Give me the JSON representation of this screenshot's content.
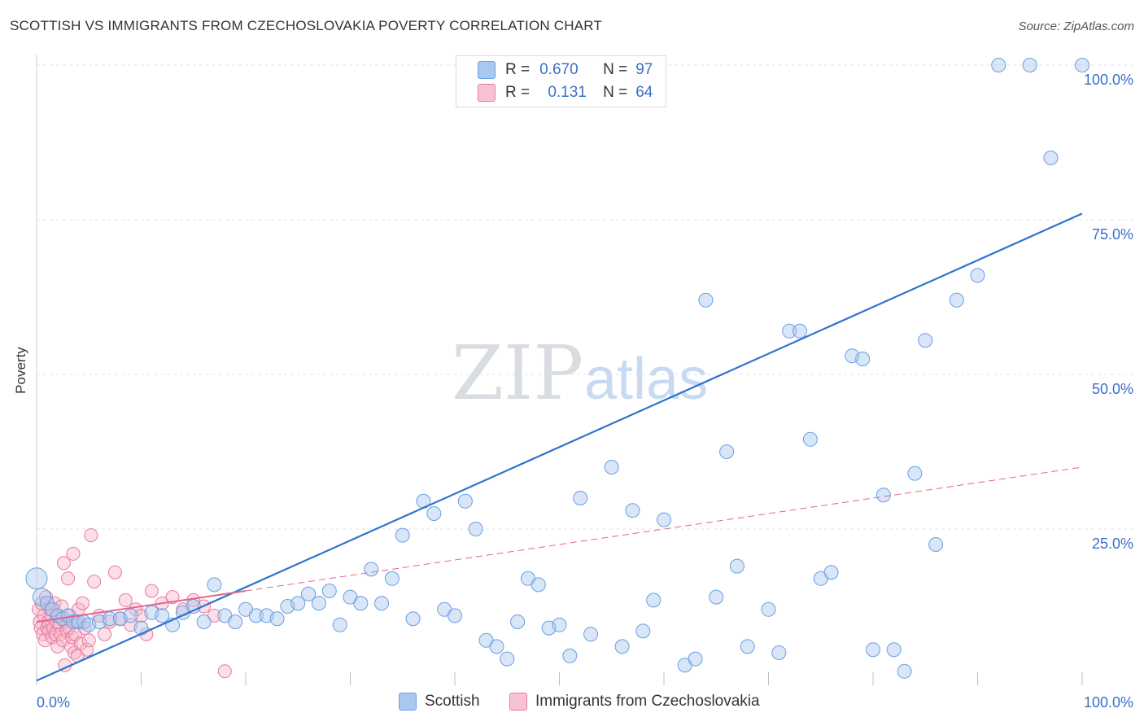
{
  "header": {
    "title": "SCOTTISH VS IMMIGRANTS FROM CZECHOSLOVAKIA POVERTY CORRELATION CHART",
    "source": "Source: ZipAtlas.com"
  },
  "legend": {
    "rows": [
      {
        "r_label": "R =",
        "r_value": "0.670",
        "n_label": "N =",
        "n_value": "97"
      },
      {
        "r_label": "R =",
        "r_value": "0.131",
        "n_label": "N =",
        "n_value": "64"
      }
    ],
    "bottom": [
      "Scottish",
      "Immigrants from Czechoslovakia"
    ]
  },
  "watermark": {
    "zip": "ZIP",
    "atlas": "atlas"
  },
  "colors": {
    "blue_fill": "#a9c8f0",
    "blue_stroke": "#6a9fe0",
    "blue_line": "#2f74d0",
    "pink_fill": "#f7b6ca",
    "pink_stroke": "#e97a9e",
    "pink_line": "#e0668f",
    "grid": "#dde3ea",
    "axis_text": "#3a70c7"
  },
  "chart_data": {
    "type": "scatter",
    "title": "SCOTTISH VS IMMIGRANTS FROM CZECHOSLOVAKIA POVERTY CORRELATION CHART",
    "xlabel": "",
    "ylabel": "Poverty",
    "xlim": [
      0,
      100
    ],
    "ylim": [
      0,
      100
    ],
    "x_tick_labels": [
      "0.0%",
      "100.0%"
    ],
    "y_tick_labels": [
      "25.0%",
      "50.0%",
      "75.0%",
      "100.0%"
    ],
    "y_ticks": [
      25,
      50,
      75,
      100
    ],
    "grid": true,
    "legend_position": "top-center",
    "series": [
      {
        "name": "Scottish",
        "r": 0.67,
        "n": 97,
        "trend": {
          "x": [
            0,
            100
          ],
          "y": [
            0.5,
            76
          ]
        },
        "points": [
          [
            0,
            17
          ],
          [
            0.5,
            14
          ],
          [
            1,
            13
          ],
          [
            1.5,
            12
          ],
          [
            2,
            11
          ],
          [
            2.5,
            10.5
          ],
          [
            3,
            11
          ],
          [
            3.5,
            10
          ],
          [
            4,
            10
          ],
          [
            4.5,
            10
          ],
          [
            5,
            9.5
          ],
          [
            6,
            10
          ],
          [
            7,
            10.5
          ],
          [
            8,
            10.5
          ],
          [
            9,
            11
          ],
          [
            10,
            9
          ],
          [
            11,
            11.5
          ],
          [
            12,
            11
          ],
          [
            13,
            9.5
          ],
          [
            14,
            11.5
          ],
          [
            15,
            12.5
          ],
          [
            16,
            10
          ],
          [
            17,
            16
          ],
          [
            18,
            11
          ],
          [
            19,
            10
          ],
          [
            20,
            12
          ],
          [
            21,
            11
          ],
          [
            22,
            11
          ],
          [
            23,
            10.5
          ],
          [
            24,
            12.5
          ],
          [
            25,
            13
          ],
          [
            26,
            14.5
          ],
          [
            27,
            13
          ],
          [
            28,
            15
          ],
          [
            29,
            9.5
          ],
          [
            30,
            14
          ],
          [
            31,
            13
          ],
          [
            32,
            18.5
          ],
          [
            33,
            13
          ],
          [
            34,
            17
          ],
          [
            35,
            24
          ],
          [
            36,
            10.5
          ],
          [
            37,
            29.5
          ],
          [
            38,
            27.5
          ],
          [
            39,
            12
          ],
          [
            40,
            11
          ],
          [
            41,
            29.5
          ],
          [
            42,
            25
          ],
          [
            43,
            7
          ],
          [
            44,
            6
          ],
          [
            45,
            4
          ],
          [
            46,
            10
          ],
          [
            47,
            17
          ],
          [
            48,
            16
          ],
          [
            49,
            9
          ],
          [
            50,
            9.5
          ],
          [
            51,
            4.5
          ],
          [
            52,
            30
          ],
          [
            53,
            8
          ],
          [
            55,
            35
          ],
          [
            56,
            6
          ],
          [
            57,
            28
          ],
          [
            58,
            8.5
          ],
          [
            59,
            13.5
          ],
          [
            60,
            26.5
          ],
          [
            62,
            3
          ],
          [
            63,
            4
          ],
          [
            64,
            62
          ],
          [
            65,
            14
          ],
          [
            66,
            37.5
          ],
          [
            67,
            19
          ],
          [
            68,
            6
          ],
          [
            70,
            12
          ],
          [
            71,
            5
          ],
          [
            72,
            57
          ],
          [
            73,
            57
          ],
          [
            74,
            39.5
          ],
          [
            75,
            17
          ],
          [
            76,
            18
          ],
          [
            78,
            53
          ],
          [
            79,
            52.5
          ],
          [
            80,
            5.5
          ],
          [
            81,
            30.5
          ],
          [
            82,
            5.5
          ],
          [
            83,
            2
          ],
          [
            84,
            34
          ],
          [
            85,
            55.5
          ],
          [
            86,
            22.5
          ],
          [
            88,
            62
          ],
          [
            90,
            66
          ],
          [
            92,
            100
          ],
          [
            95,
            100
          ],
          [
            97,
            85
          ],
          [
            100,
            100
          ]
        ]
      },
      {
        "name": "Immigrants from Czechoslovakia",
        "r": 0.131,
        "n": 64,
        "trend": {
          "x": [
            0,
            100
          ],
          "y": [
            10,
            35
          ]
        },
        "points": [
          [
            0.2,
            12
          ],
          [
            0.3,
            10
          ],
          [
            0.4,
            9
          ],
          [
            0.5,
            13
          ],
          [
            0.6,
            8
          ],
          [
            0.7,
            11
          ],
          [
            0.8,
            7
          ],
          [
            0.9,
            14
          ],
          [
            1,
            9
          ],
          [
            1.1,
            10
          ],
          [
            1.2,
            8.5
          ],
          [
            1.3,
            12
          ],
          [
            1.4,
            11
          ],
          [
            1.5,
            7.5
          ],
          [
            1.6,
            9
          ],
          [
            1.7,
            13
          ],
          [
            1.8,
            8
          ],
          [
            1.9,
            10
          ],
          [
            2,
            6
          ],
          [
            2.1,
            11
          ],
          [
            2.2,
            9.5
          ],
          [
            2.3,
            8
          ],
          [
            2.4,
            12.5
          ],
          [
            2.5,
            7
          ],
          [
            2.6,
            19.5
          ],
          [
            2.7,
            3
          ],
          [
            2.8,
            10
          ],
          [
            2.9,
            8.5
          ],
          [
            3,
            17
          ],
          [
            3.1,
            9
          ],
          [
            3.2,
            11
          ],
          [
            3.3,
            6
          ],
          [
            3.4,
            7.5
          ],
          [
            3.5,
            21
          ],
          [
            3.6,
            5
          ],
          [
            3.7,
            8
          ],
          [
            3.8,
            10
          ],
          [
            3.9,
            4.5
          ],
          [
            4,
            12
          ],
          [
            4.2,
            6.5
          ],
          [
            4.4,
            13
          ],
          [
            4.6,
            9
          ],
          [
            4.8,
            5.5
          ],
          [
            5,
            7
          ],
          [
            5.5,
            16.5
          ],
          [
            6,
            11
          ],
          [
            6.5,
            8
          ],
          [
            7,
            10
          ],
          [
            7.5,
            18
          ],
          [
            8,
            10.5
          ],
          [
            8.5,
            13.5
          ],
          [
            9,
            9.5
          ],
          [
            9.5,
            12
          ],
          [
            10,
            11
          ],
          [
            10.5,
            8
          ],
          [
            11,
            15
          ],
          [
            12,
            13
          ],
          [
            13,
            14
          ],
          [
            14,
            12
          ],
          [
            15,
            13.5
          ],
          [
            16,
            12.5
          ],
          [
            17,
            11
          ],
          [
            18,
            2
          ],
          [
            5.2,
            24
          ]
        ]
      }
    ]
  }
}
